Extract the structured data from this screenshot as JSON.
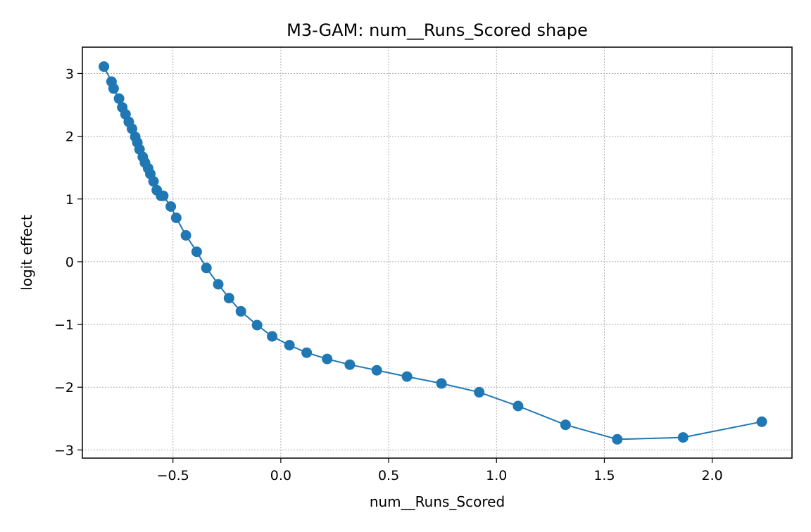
{
  "chart_data": {
    "type": "line",
    "title": "M3-GAM: num__Runs_Scored shape",
    "xlabel": "num__Runs_Scored",
    "ylabel": "logit effect",
    "xlim": [
      -0.92,
      2.37
    ],
    "ylim": [
      -3.13,
      3.42
    ],
    "xticks": [
      -0.5,
      0.0,
      0.5,
      1.0,
      1.5,
      2.0
    ],
    "xtick_labels": [
      "−0.5",
      "0.0",
      "0.5",
      "1.0",
      "1.5",
      "2.0"
    ],
    "yticks": [
      -3,
      -2,
      -1,
      0,
      1,
      2,
      3
    ],
    "ytick_labels": [
      "−3",
      "−2",
      "−1",
      "0",
      "1",
      "2",
      "3"
    ],
    "grid": true,
    "grid_style": "dotted",
    "marker": "circle",
    "color": "#1f77b4",
    "series": [
      {
        "x": [
          -0.82,
          -0.785,
          -0.775,
          -0.75,
          -0.735,
          -0.72,
          -0.705,
          -0.69,
          -0.675,
          -0.665,
          -0.655,
          -0.64,
          -0.63,
          -0.615,
          -0.605,
          -0.59,
          -0.575,
          -0.555,
          -0.545,
          -0.51,
          -0.485,
          -0.44,
          -0.39,
          -0.345,
          -0.29,
          -0.24,
          -0.185,
          -0.11,
          -0.04,
          0.04,
          0.12,
          0.215,
          0.32,
          0.445,
          0.585,
          0.745,
          0.92,
          1.1,
          1.32,
          1.56,
          1.865,
          2.23
        ],
        "y": [
          3.11,
          2.87,
          2.76,
          2.6,
          2.46,
          2.35,
          2.23,
          2.12,
          1.99,
          1.9,
          1.79,
          1.67,
          1.58,
          1.49,
          1.4,
          1.28,
          1.14,
          1.05,
          1.05,
          0.88,
          0.7,
          0.42,
          0.16,
          -0.1,
          -0.36,
          -0.58,
          -0.79,
          -1.01,
          -1.19,
          -1.33,
          -1.45,
          -1.55,
          -1.64,
          -1.73,
          -1.83,
          -1.94,
          -2.08,
          -2.3,
          -2.6,
          -2.83,
          -2.8,
          -2.55
        ]
      }
    ]
  }
}
